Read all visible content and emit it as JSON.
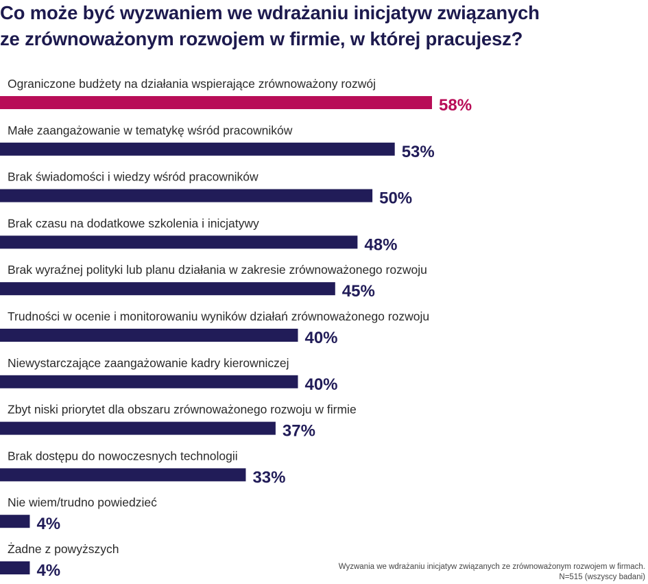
{
  "title": {
    "line1": "Co może być wyzwaniem we wdrażaniu inicjatyw związanych",
    "line2": "ze zrównoważonym rozwojem w firmie, w której pracujesz?"
  },
  "colors": {
    "highlight": "#b80d57",
    "bar": "#211c58",
    "title": "#1d1a4e"
  },
  "chart_data": {
    "type": "bar",
    "orientation": "horizontal",
    "categories": [
      "Ograniczone budżety na działania wspierające zrównoważony rozwój",
      "Małe zaangażowanie w tematykę wśród pracowników",
      "Brak świadomości i wiedzy wśród pracowników",
      "Brak czasu na dodatkowe szkolenia i inicjatywy",
      "Brak wyraźnej polityki lub planu działania w zakresie zrównoważonego rozwoju",
      "Trudności w ocenie i monitorowaniu wyników działań zrównoważonego rozwoju",
      "Niewystarczające zaangażowanie kadry kierowniczej",
      "Zbyt niski priorytet dla obszaru zrównoważonego rozwoju w firmie",
      "Brak dostępu do nowoczesnych technologii",
      "Nie wiem/trudno powiedzieć",
      "Żadne z powyższych"
    ],
    "values": [
      58,
      53,
      50,
      48,
      45,
      40,
      40,
      37,
      33,
      4,
      4
    ],
    "value_labels": [
      "58%",
      "53%",
      "50%",
      "48%",
      "45%",
      "40%",
      "40%",
      "37%",
      "33%",
      "4%",
      "4%"
    ],
    "highlighted_index": 0,
    "xlim": [
      0,
      100
    ],
    "grid": false,
    "legend": "none"
  },
  "footnote": {
    "line1": "Wyzwania we wdrażaniu inicjatyw związanych ze zrównoważonym rozwojem w firmach.",
    "line2": "N=515 (wszyscy badani)"
  }
}
